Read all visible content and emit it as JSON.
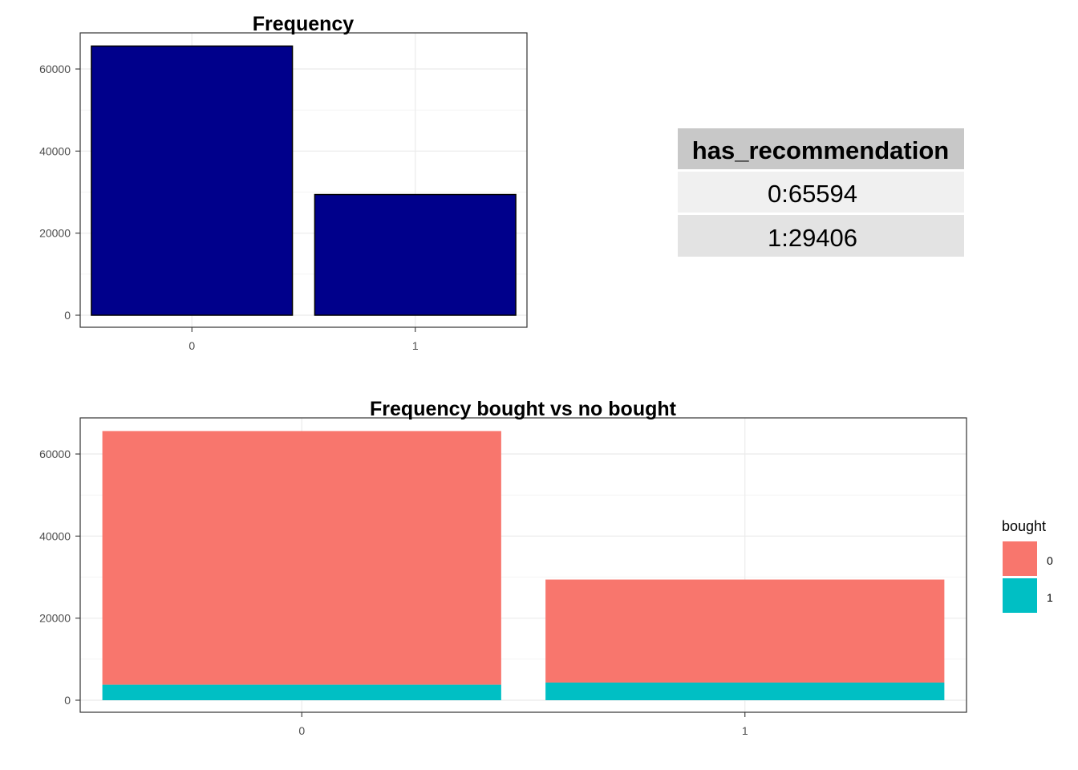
{
  "chart_data": [
    {
      "type": "bar",
      "title": "Frequency",
      "categories": [
        "0",
        "1"
      ],
      "values": [
        65594,
        29406
      ],
      "ylim": [
        0,
        68800
      ],
      "yticks": [
        0,
        20000,
        40000,
        60000
      ],
      "ytick_labels": [
        "0",
        "20000",
        "40000",
        "60000"
      ],
      "xlabel": "",
      "ylabel": "",
      "grid": true,
      "bar_color": "#00008B",
      "bar_outline": "#000000"
    },
    {
      "type": "table",
      "header": "has_recommendation",
      "rows": [
        "0:65594",
        "1:29406"
      ]
    },
    {
      "type": "bar",
      "stacked": true,
      "title": "Frequency bought vs no bought",
      "categories": [
        "0",
        "1"
      ],
      "series": [
        {
          "name": "0",
          "values": [
            61800,
            25100
          ],
          "color": "#F8766D"
        },
        {
          "name": "1",
          "values": [
            3794,
            4306
          ],
          "color": "#00BFC4"
        }
      ],
      "ylim": [
        0,
        68800
      ],
      "yticks": [
        0,
        20000,
        40000,
        60000
      ],
      "ytick_labels": [
        "0",
        "20000",
        "40000",
        "60000"
      ],
      "xlabel": "",
      "ylabel": "",
      "grid": true,
      "legend": {
        "title": "bought",
        "placement": "right"
      }
    }
  ]
}
